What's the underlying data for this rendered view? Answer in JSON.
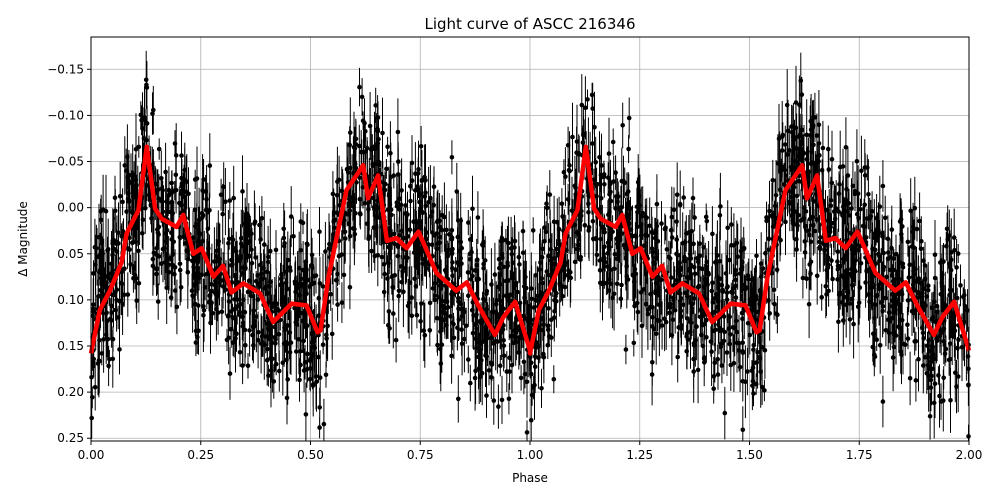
{
  "chart_data": {
    "type": "scatter",
    "title": "Light curve of ASCC 216346",
    "xlabel": "Phase",
    "ylabel": "Δ Magnitude",
    "xlim": [
      0.0,
      2.0
    ],
    "ylim": [
      0.253,
      -0.185
    ],
    "y_inverted": true,
    "grid": true,
    "x_ticks": [
      "0.00",
      "0.25",
      "0.50",
      "0.75",
      "1.00",
      "1.25",
      "1.50",
      "1.75",
      "2.00"
    ],
    "y_ticks": [
      "−0.15",
      "−0.10",
      "−0.05",
      "0.00",
      "0.05",
      "0.10",
      "0.15",
      "0.20",
      "0.25"
    ],
    "x_tick_values": [
      0,
      0.25,
      0.5,
      0.75,
      1.0,
      1.25,
      1.5,
      1.75,
      2.0
    ],
    "y_tick_values": [
      -0.15,
      -0.1,
      -0.05,
      0.0,
      0.05,
      0.1,
      0.15,
      0.2,
      0.25
    ],
    "series": [
      {
        "kind": "observations-with-errorbars",
        "color": "#000000"
      },
      {
        "kind": "smoothed-curve",
        "color": "#ff0000",
        "phase": [
          0.0,
          0.02,
          0.043,
          0.07,
          0.081,
          0.108,
          0.127,
          0.146,
          0.161,
          0.195,
          0.21,
          0.233,
          0.252,
          0.279,
          0.301,
          0.32,
          0.347,
          0.385,
          0.415,
          0.457,
          0.491,
          0.516,
          0.523,
          0.541,
          0.582,
          0.62,
          0.631,
          0.654,
          0.674,
          0.696,
          0.719,
          0.746,
          0.787,
          0.832,
          0.856,
          0.882,
          0.92,
          0.939,
          0.966,
          1.0
        ],
        "magnitude": [
          0.158,
          0.111,
          0.09,
          0.059,
          0.028,
          0.003,
          -0.066,
          0.001,
          0.012,
          0.021,
          0.008,
          0.05,
          0.044,
          0.075,
          0.063,
          0.092,
          0.082,
          0.093,
          0.124,
          0.104,
          0.106,
          0.135,
          0.133,
          0.075,
          -0.019,
          -0.046,
          -0.01,
          -0.035,
          0.036,
          0.033,
          0.044,
          0.026,
          0.071,
          0.09,
          0.081,
          0.106,
          0.138,
          0.119,
          0.102,
          0.155
        ],
        "repeats_every_phase": 1.0
      }
    ]
  }
}
